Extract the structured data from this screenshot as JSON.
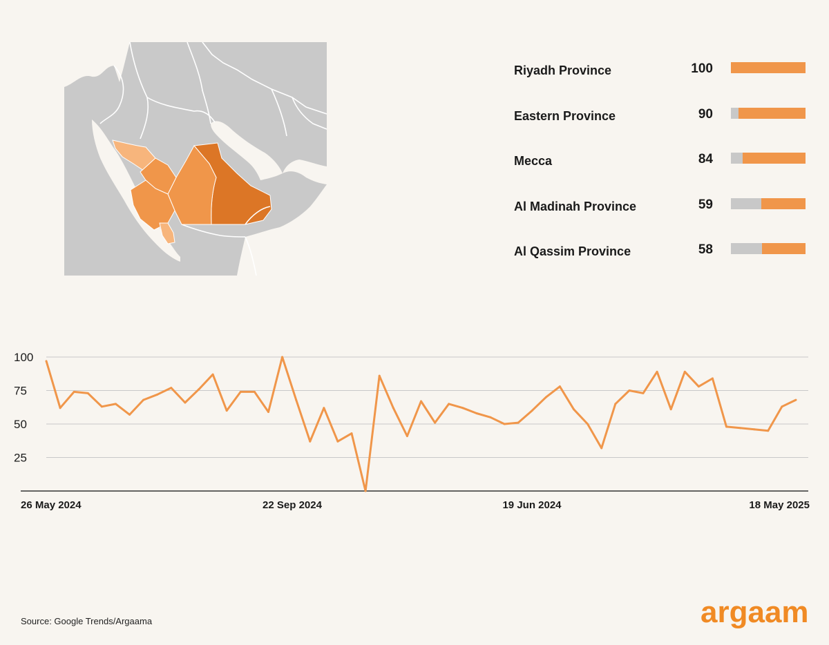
{
  "regions": [
    {
      "name": "Riyadh Province",
      "score": 100
    },
    {
      "name": "Eastern Province",
      "score": 90
    },
    {
      "name": "Mecca",
      "score": 84
    },
    {
      "name": "Al Madinah Province",
      "score": 59
    },
    {
      "name": "Al Qassim Province",
      "score": 58
    }
  ],
  "colors": {
    "background": "#f8f5f0",
    "accent": "#f0964a",
    "accent_dark": "#dc7626",
    "accent_light": "#f7b57c",
    "map_land": "#c9c9c9",
    "map_border": "#ffffff",
    "track": "#c8c8c8",
    "gridline": "#c8c8c8",
    "brand": "#f08a24"
  },
  "chart_data": {
    "type": "line",
    "title": "",
    "xlabel": "",
    "ylabel": "",
    "ylim": [
      0,
      100
    ],
    "yticks": [
      25,
      50,
      75,
      100
    ],
    "x_labels": [
      "26 May 2024",
      "22 Sep 2024",
      "19 Jun 2024",
      "18 May 2025"
    ],
    "x_label_index": [
      0,
      17,
      34,
      52
    ],
    "series": [
      {
        "name": "",
        "values": [
          97,
          62,
          74,
          73,
          63,
          65,
          57,
          68,
          72,
          77,
          66,
          76,
          87,
          60,
          74,
          74,
          59,
          100,
          68,
          37,
          62,
          37,
          43,
          0,
          86,
          62,
          41,
          67,
          51,
          65,
          62,
          58,
          55,
          50,
          51,
          60,
          70,
          78,
          61,
          50,
          32,
          65,
          75,
          73,
          89,
          61,
          89,
          78,
          84,
          48,
          47,
          46,
          45,
          63,
          68
        ]
      }
    ],
    "grid": true
  },
  "source": "Source: Google Trends/Argaama",
  "brand": "argaam"
}
